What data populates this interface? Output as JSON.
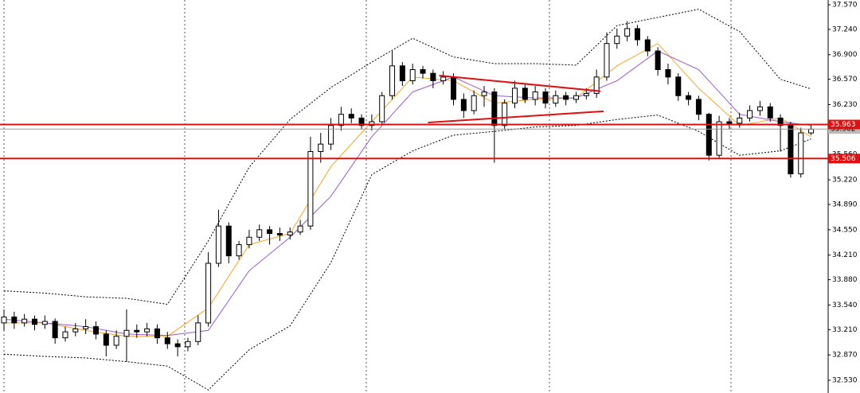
{
  "chart_data": {
    "type": "candlestick",
    "ylim": [
      32.53,
      37.57
    ],
    "yticks": [
      {
        "value": 37.57,
        "label": "37.570"
      },
      {
        "value": 37.24,
        "label": "37.240"
      },
      {
        "value": 36.9,
        "label": "36.900"
      },
      {
        "value": 36.57,
        "label": "36.570"
      },
      {
        "value": 36.23,
        "label": "36.230"
      },
      {
        "value": 35.9,
        "label": "35.900"
      },
      {
        "value": 35.56,
        "label": "35.560"
      },
      {
        "value": 35.22,
        "label": "35.220"
      },
      {
        "value": 34.89,
        "label": "34.890"
      },
      {
        "value": 34.55,
        "label": "34.550"
      },
      {
        "value": 34.21,
        "label": "34.210"
      },
      {
        "value": 33.88,
        "label": "33.880"
      },
      {
        "value": 33.54,
        "label": "33.540"
      },
      {
        "value": 33.21,
        "label": "33.210"
      },
      {
        "value": 32.87,
        "label": "32.870"
      },
      {
        "value": 32.53,
        "label": "32.530"
      }
    ],
    "open": [
      33.3,
      33.38,
      33.3,
      33.35,
      33.28,
      33.32,
      33.1,
      33.18,
      33.22,
      33.25,
      33.15,
      33.0,
      33.12,
      33.2,
      33.18,
      33.22,
      33.1,
      33.02,
      32.98,
      33.05,
      33.3,
      34.1,
      34.6,
      34.2,
      34.35,
      34.45,
      34.55,
      34.5,
      34.48,
      34.52,
      34.6,
      35.6,
      35.7,
      35.95,
      36.1,
      36.05,
      35.95,
      36.0,
      36.35,
      36.75,
      36.55,
      36.7,
      36.65,
      36.55,
      36.6,
      36.3,
      36.15,
      36.35,
      36.4,
      35.95,
      36.25,
      36.45,
      36.3,
      36.4,
      36.25,
      36.35,
      36.3,
      36.35,
      36.38,
      36.6,
      37.05,
      37.15,
      37.25,
      37.1,
      36.95,
      36.7,
      36.6,
      36.35,
      36.3,
      36.1,
      35.55,
      36.0,
      35.98,
      36.05,
      36.15,
      36.2,
      36.05,
      35.95,
      35.3,
      35.85
    ],
    "high": [
      33.48,
      33.45,
      33.42,
      33.4,
      33.4,
      33.36,
      33.25,
      33.3,
      33.35,
      33.32,
      33.2,
      33.2,
      33.48,
      33.28,
      33.3,
      33.28,
      33.18,
      33.08,
      33.1,
      33.4,
      34.25,
      34.82,
      34.65,
      34.4,
      34.55,
      34.62,
      34.6,
      34.58,
      34.58,
      34.68,
      35.8,
      35.85,
      36.05,
      36.2,
      36.18,
      36.1,
      36.1,
      36.4,
      36.95,
      36.8,
      36.78,
      36.75,
      36.7,
      36.68,
      36.65,
      36.38,
      36.42,
      36.48,
      36.45,
      36.3,
      36.55,
      36.5,
      36.48,
      36.45,
      36.42,
      36.4,
      36.4,
      36.45,
      36.7,
      37.2,
      37.25,
      37.35,
      37.3,
      37.15,
      37.0,
      36.78,
      36.65,
      36.4,
      36.35,
      36.12,
      36.08,
      36.05,
      36.12,
      36.22,
      36.28,
      36.25,
      36.1,
      36.0,
      35.92,
      35.95
    ],
    "low": [
      33.2,
      33.22,
      33.25,
      33.2,
      33.22,
      33.02,
      33.05,
      33.12,
      33.15,
      33.08,
      32.85,
      32.95,
      32.78,
      33.1,
      33.12,
      33.02,
      32.95,
      32.85,
      32.92,
      33.0,
      33.25,
      34.05,
      34.1,
      34.15,
      34.3,
      34.4,
      34.35,
      34.4,
      34.42,
      34.48,
      34.55,
      35.45,
      35.62,
      35.88,
      35.98,
      35.9,
      35.88,
      35.95,
      36.3,
      36.48,
      36.5,
      36.58,
      36.45,
      36.5,
      36.22,
      36.05,
      36.1,
      36.2,
      35.45,
      35.9,
      36.18,
      36.25,
      36.22,
      36.18,
      36.2,
      36.22,
      36.25,
      36.3,
      36.32,
      36.55,
      36.98,
      37.08,
      37.02,
      36.88,
      36.62,
      36.5,
      36.28,
      36.22,
      36.02,
      35.48,
      35.5,
      35.9,
      35.92,
      36.0,
      36.08,
      36.0,
      35.6,
      35.25,
      35.25,
      35.82
    ],
    "close": [
      33.38,
      33.3,
      33.35,
      33.28,
      33.32,
      33.1,
      33.18,
      33.22,
      33.25,
      33.15,
      33.0,
      33.12,
      33.2,
      33.18,
      33.22,
      33.1,
      33.02,
      32.98,
      33.05,
      33.3,
      34.1,
      34.6,
      34.2,
      34.35,
      34.45,
      34.55,
      34.5,
      34.48,
      34.52,
      34.6,
      35.6,
      35.7,
      35.95,
      36.1,
      36.05,
      35.95,
      36.0,
      36.35,
      36.75,
      36.55,
      36.7,
      36.65,
      36.55,
      36.6,
      36.3,
      36.15,
      36.35,
      36.4,
      35.95,
      36.25,
      36.45,
      36.3,
      36.4,
      36.25,
      36.35,
      36.3,
      36.35,
      36.38,
      36.6,
      37.05,
      37.15,
      37.25,
      37.1,
      36.95,
      36.7,
      36.6,
      36.35,
      36.3,
      36.1,
      35.55,
      36.0,
      35.98,
      36.05,
      36.15,
      36.2,
      36.05,
      35.95,
      35.3,
      35.85,
      35.9
    ],
    "indicators": [
      {
        "color": "#000000",
        "style": "dotted",
        "x": [
          0,
          4,
          8,
          12,
          16,
          20,
          24,
          28,
          32,
          36,
          40,
          44,
          48,
          52,
          56,
          60,
          64,
          68,
          72,
          76,
          79
        ],
        "values": [
          33.73,
          33.7,
          33.65,
          33.63,
          33.55,
          34.4,
          35.39,
          36.03,
          36.46,
          36.8,
          37.12,
          36.87,
          36.78,
          36.78,
          36.76,
          37.29,
          37.4,
          37.51,
          37.21,
          36.57,
          36.44
        ]
      },
      {
        "color": "#000000",
        "style": "dotted",
        "x": [
          0,
          4,
          8,
          12,
          16,
          20,
          24,
          28,
          32,
          36,
          40,
          44,
          48,
          52,
          56,
          60,
          64,
          68,
          72,
          76,
          79
        ],
        "values": [
          32.88,
          32.85,
          32.83,
          32.78,
          32.72,
          32.4,
          32.94,
          33.26,
          34.11,
          35.29,
          35.61,
          35.82,
          35.87,
          35.93,
          35.95,
          36.03,
          36.09,
          35.87,
          35.55,
          35.61,
          35.77
        ]
      },
      {
        "color": "#f5a623",
        "style": "solid",
        "x": [
          0,
          4,
          8,
          12,
          16,
          20,
          24,
          28,
          32,
          36,
          40,
          44,
          48,
          52,
          56,
          60,
          64,
          68,
          72,
          76,
          79
        ],
        "values": [
          33.3,
          33.3,
          33.2,
          33.12,
          33.12,
          33.5,
          34.35,
          34.5,
          35.4,
          36.0,
          36.6,
          36.55,
          36.25,
          36.3,
          36.32,
          36.75,
          37.05,
          36.45,
          35.95,
          36.05,
          35.8
        ]
      },
      {
        "color": "#9b59d0",
        "style": "solid",
        "x": [
          0,
          4,
          8,
          12,
          16,
          20,
          24,
          28,
          32,
          36,
          40,
          44,
          48,
          52,
          56,
          60,
          64,
          68,
          72,
          76,
          79
        ],
        "values": [
          33.35,
          33.3,
          33.25,
          33.15,
          33.13,
          33.2,
          34.0,
          34.45,
          35.0,
          35.8,
          36.4,
          36.6,
          36.35,
          36.32,
          36.32,
          36.55,
          36.95,
          36.7,
          36.1,
          36.0,
          35.95
        ]
      }
    ],
    "trendlines": [
      {
        "color": "#e01010",
        "x": [
          42.6,
          58.4
        ],
        "y": [
          36.62,
          36.41
        ]
      },
      {
        "color": "#e01010",
        "x": [
          41.5,
          58.7
        ],
        "y": [
          35.99,
          36.14
        ]
      }
    ],
    "levels": [
      {
        "value": 35.963,
        "label": "35.963",
        "color": "#e01010"
      },
      {
        "value": 35.506,
        "label": "35.506",
        "color": "#e01010"
      }
    ],
    "last_price": {
      "value": 35.902,
      "label": "35.902"
    }
  }
}
